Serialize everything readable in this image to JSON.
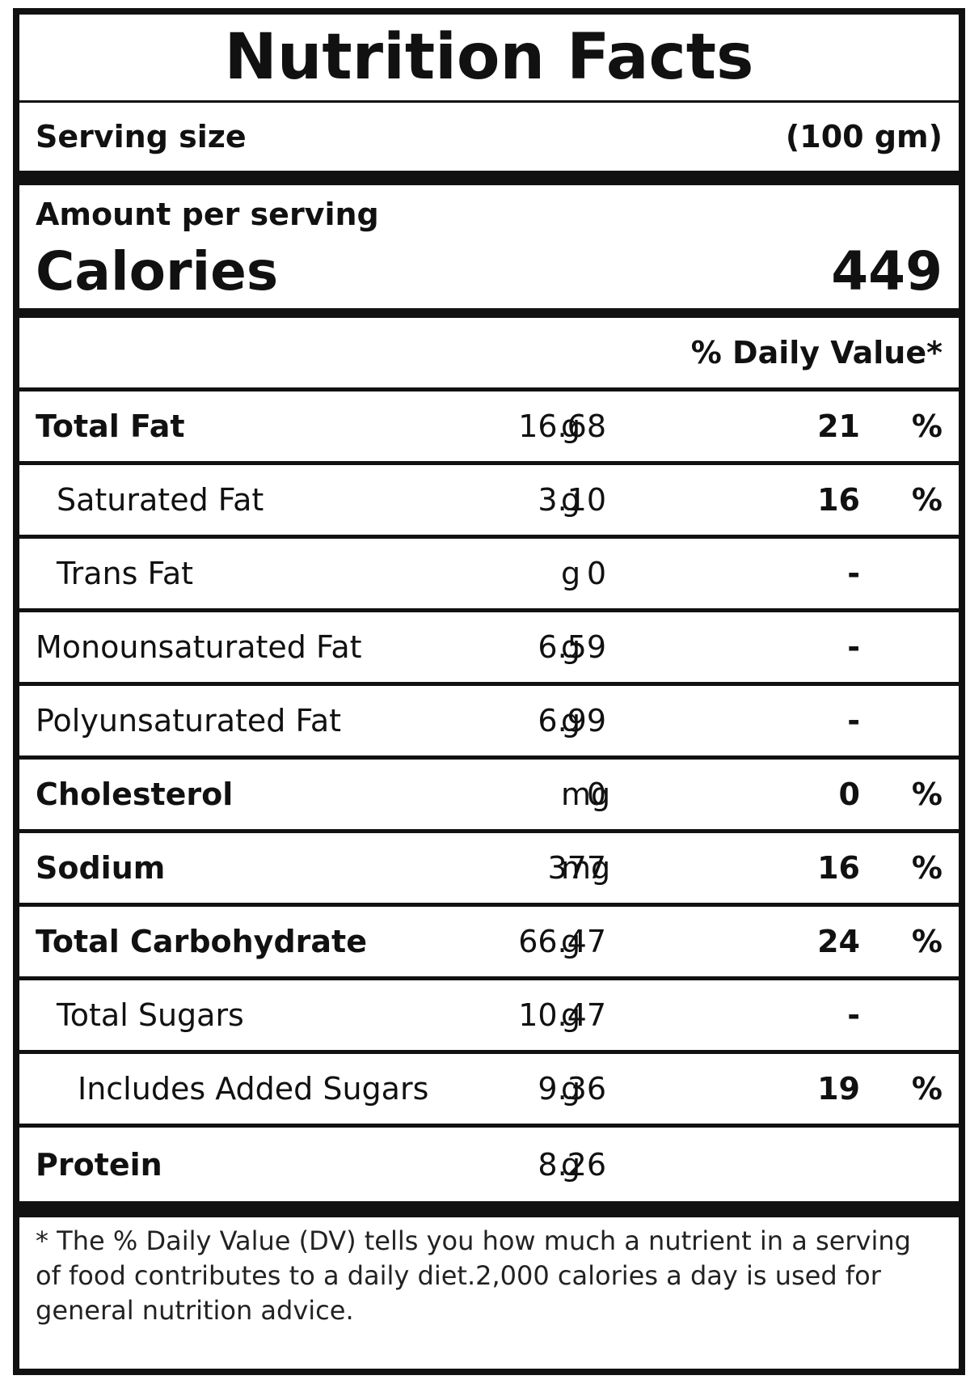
{
  "label": {
    "title": "Nutrition Facts",
    "serving_label": "Serving size",
    "serving_value": "(100 gm)",
    "amount_per_serving": "Amount per serving",
    "calories_label": "Calories",
    "calories_value": "449",
    "daily_value_header": "% Daily Value*",
    "nutrients": [
      {
        "name": "Total Fat",
        "amount": "16.68",
        "unit": "g",
        "dv": "21",
        "dv_sign": "%"
      },
      {
        "name": "Saturated Fat",
        "amount": "3.10",
        "unit": "g",
        "dv": "16",
        "dv_sign": "%"
      },
      {
        "name": "Trans Fat",
        "amount": "0",
        "unit": "g",
        "dv": "-",
        "dv_sign": ""
      },
      {
        "name": "Monounsaturated Fat",
        "amount": "6.59",
        "unit": "g",
        "dv": "-",
        "dv_sign": ""
      },
      {
        "name": "Polyunsaturated Fat",
        "amount": "6.99",
        "unit": "g",
        "dv": "-",
        "dv_sign": ""
      },
      {
        "name": "Cholesterol",
        "amount": "0",
        "unit": "mg",
        "dv": "0",
        "dv_sign": "%"
      },
      {
        "name": "Sodium",
        "amount": "377",
        "unit": "mg",
        "dv": "16",
        "dv_sign": "%"
      },
      {
        "name": "Total Carbohydrate",
        "amount": "66.47",
        "unit": "g",
        "dv": "24",
        "dv_sign": "%"
      },
      {
        "name": "Total Sugars",
        "amount": "10.47",
        "unit": "g",
        "dv": "-",
        "dv_sign": ""
      },
      {
        "name": "Includes Added Sugars",
        "amount": "9.36",
        "unit": "g",
        "dv": "19",
        "dv_sign": "%"
      },
      {
        "name": "Protein",
        "amount": "8.26",
        "unit": "g",
        "dv": "",
        "dv_sign": ""
      }
    ],
    "footnote": "* The % Daily Value (DV) tells you how much a nutrient in a serving of food contributes to a daily diet.2,000 calories a day is used for general nutrition advice."
  }
}
